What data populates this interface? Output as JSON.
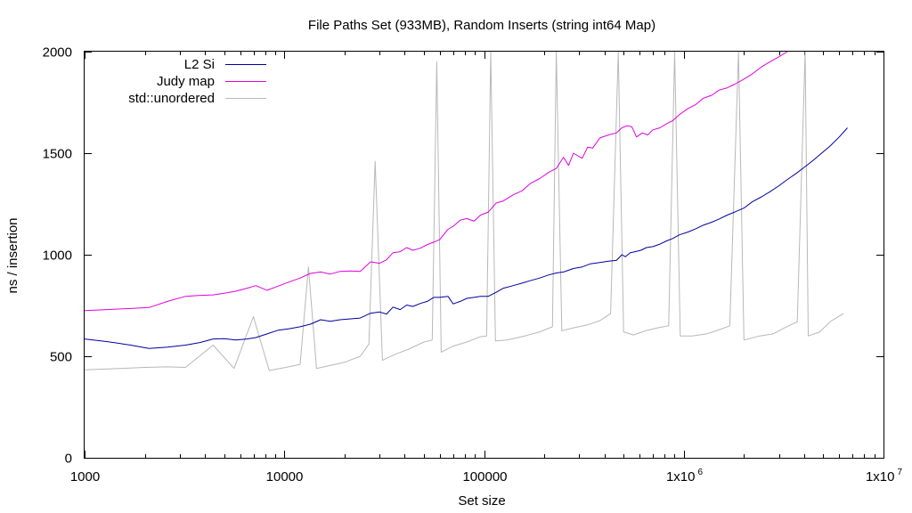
{
  "chart_data": {
    "type": "line",
    "title": "File Paths Set (933MB), Random Inserts (string int64 Map)",
    "xlabel": "Set size",
    "ylabel": "ns / insertion",
    "xscale": "log",
    "xlim": [
      1000,
      10000000
    ],
    "ylim": [
      0,
      2000
    ],
    "grid": false,
    "legend_position": "top-left",
    "x_ticks": [
      {
        "value": 1000,
        "label": "1000"
      },
      {
        "value": 10000,
        "label": "10000"
      },
      {
        "value": 100000,
        "label": "100000"
      },
      {
        "value": 1000000,
        "label": "1x10",
        "exp": "6"
      },
      {
        "value": 10000000,
        "label": "1x10",
        "exp": "7"
      }
    ],
    "y_ticks": [
      {
        "value": 0,
        "label": "0"
      },
      {
        "value": 500,
        "label": "500"
      },
      {
        "value": 1000,
        "label": "1000"
      },
      {
        "value": 1500,
        "label": "1500"
      },
      {
        "value": 2000,
        "label": "2000"
      }
    ],
    "series": [
      {
        "name": "L2 Si",
        "color": "#0000a0",
        "points": [
          [
            1000,
            585
          ],
          [
            1300,
            572
          ],
          [
            1700,
            555
          ],
          [
            2100,
            538
          ],
          [
            2600,
            545
          ],
          [
            3200,
            555
          ],
          [
            3800,
            568
          ],
          [
            4400,
            585
          ],
          [
            5000,
            587
          ],
          [
            5700,
            580
          ],
          [
            6500,
            585
          ],
          [
            7200,
            592
          ],
          [
            8200,
            610
          ],
          [
            9300,
            628
          ],
          [
            10500,
            635
          ],
          [
            12000,
            645
          ],
          [
            13500,
            658
          ],
          [
            15200,
            680
          ],
          [
            17000,
            672
          ],
          [
            19000,
            680
          ],
          [
            21500,
            684
          ],
          [
            24000,
            688
          ],
          [
            27000,
            712
          ],
          [
            30000,
            718
          ],
          [
            32500,
            708
          ],
          [
            35000,
            742
          ],
          [
            38000,
            730
          ],
          [
            41000,
            752
          ],
          [
            44000,
            745
          ],
          [
            48000,
            760
          ],
          [
            52000,
            770
          ],
          [
            56000,
            790
          ],
          [
            60000,
            790
          ],
          [
            66000,
            795
          ],
          [
            70000,
            758
          ],
          [
            76000,
            770
          ],
          [
            82000,
            785
          ],
          [
            89000,
            790
          ],
          [
            96000,
            795
          ],
          [
            105000,
            795
          ],
          [
            115000,
            815
          ],
          [
            125000,
            835
          ],
          [
            140000,
            848
          ],
          [
            155000,
            860
          ],
          [
            170000,
            872
          ],
          [
            190000,
            885
          ],
          [
            210000,
            900
          ],
          [
            230000,
            910
          ],
          [
            250000,
            915
          ],
          [
            280000,
            932
          ],
          [
            310000,
            940
          ],
          [
            340000,
            955
          ],
          [
            380000,
            962
          ],
          [
            420000,
            968
          ],
          [
            460000,
            972
          ],
          [
            490000,
            1000
          ],
          [
            510000,
            990
          ],
          [
            540000,
            1010
          ],
          [
            570000,
            1015
          ],
          [
            610000,
            1022
          ],
          [
            650000,
            1035
          ],
          [
            700000,
            1040
          ],
          [
            760000,
            1052
          ],
          [
            820000,
            1068
          ],
          [
            880000,
            1080
          ],
          [
            950000,
            1098
          ],
          [
            1050000,
            1112
          ],
          [
            1150000,
            1128
          ],
          [
            1250000,
            1145
          ],
          [
            1380000,
            1160
          ],
          [
            1500000,
            1175
          ],
          [
            1650000,
            1195
          ],
          [
            1800000,
            1210
          ],
          [
            2000000,
            1230
          ],
          [
            2200000,
            1260
          ],
          [
            2450000,
            1285
          ],
          [
            2700000,
            1310
          ],
          [
            3000000,
            1340
          ],
          [
            3300000,
            1370
          ],
          [
            3650000,
            1400
          ],
          [
            4000000,
            1430
          ],
          [
            4450000,
            1465
          ],
          [
            4900000,
            1500
          ],
          [
            5400000,
            1535
          ],
          [
            6000000,
            1580
          ],
          [
            6600000,
            1625
          ]
        ]
      },
      {
        "name": "Judy map",
        "color": "#e000e0",
        "points": [
          [
            1000,
            725
          ],
          [
            1300,
            730
          ],
          [
            1700,
            735
          ],
          [
            2100,
            740
          ],
          [
            2600,
            770
          ],
          [
            3200,
            795
          ],
          [
            3800,
            800
          ],
          [
            4400,
            802
          ],
          [
            5000,
            810
          ],
          [
            5700,
            820
          ],
          [
            6500,
            835
          ],
          [
            7200,
            848
          ],
          [
            8200,
            825
          ],
          [
            9300,
            845
          ],
          [
            10500,
            865
          ],
          [
            12000,
            885
          ],
          [
            13500,
            908
          ],
          [
            15200,
            915
          ],
          [
            17000,
            905
          ],
          [
            19000,
            918
          ],
          [
            21500,
            920
          ],
          [
            24000,
            918
          ],
          [
            27000,
            965
          ],
          [
            30000,
            958
          ],
          [
            32500,
            975
          ],
          [
            35000,
            1010
          ],
          [
            38000,
            1015
          ],
          [
            41000,
            1035
          ],
          [
            44000,
            1022
          ],
          [
            48000,
            1032
          ],
          [
            52000,
            1050
          ],
          [
            56000,
            1062
          ],
          [
            60000,
            1075
          ],
          [
            66000,
            1125
          ],
          [
            70000,
            1140
          ],
          [
            76000,
            1170
          ],
          [
            82000,
            1178
          ],
          [
            89000,
            1165
          ],
          [
            96000,
            1195
          ],
          [
            105000,
            1210
          ],
          [
            115000,
            1255
          ],
          [
            125000,
            1265
          ],
          [
            140000,
            1295
          ],
          [
            155000,
            1315
          ],
          [
            170000,
            1350
          ],
          [
            190000,
            1375
          ],
          [
            210000,
            1405
          ],
          [
            230000,
            1425
          ],
          [
            250000,
            1480
          ],
          [
            265000,
            1440
          ],
          [
            280000,
            1500
          ],
          [
            310000,
            1475
          ],
          [
            330000,
            1530
          ],
          [
            350000,
            1525
          ],
          [
            380000,
            1575
          ],
          [
            420000,
            1590
          ],
          [
            460000,
            1600
          ],
          [
            490000,
            1625
          ],
          [
            520000,
            1635
          ],
          [
            550000,
            1630
          ],
          [
            580000,
            1580
          ],
          [
            620000,
            1600
          ],
          [
            660000,
            1590
          ],
          [
            700000,
            1615
          ],
          [
            760000,
            1625
          ],
          [
            820000,
            1645
          ],
          [
            880000,
            1660
          ],
          [
            950000,
            1690
          ],
          [
            1050000,
            1720
          ],
          [
            1150000,
            1740
          ],
          [
            1250000,
            1770
          ],
          [
            1380000,
            1785
          ],
          [
            1500000,
            1810
          ],
          [
            1650000,
            1822
          ],
          [
            1800000,
            1840
          ],
          [
            2000000,
            1865
          ],
          [
            2200000,
            1890
          ],
          [
            2450000,
            1925
          ],
          [
            2700000,
            1950
          ],
          [
            3000000,
            1975
          ],
          [
            3300000,
            2000
          ]
        ]
      },
      {
        "name": "std::unordered",
        "color": "#b8b8b8",
        "points": [
          [
            1000,
            433
          ],
          [
            1500,
            440
          ],
          [
            2000,
            445
          ],
          [
            2600,
            448
          ],
          [
            3200,
            445
          ],
          [
            4400,
            555
          ],
          [
            5600,
            440
          ],
          [
            7000,
            695
          ],
          [
            8400,
            430
          ],
          [
            9500,
            440
          ],
          [
            10500,
            448
          ],
          [
            12000,
            460
          ],
          [
            13200,
            940
          ],
          [
            14500,
            440
          ],
          [
            17000,
            455
          ],
          [
            20000,
            470
          ],
          [
            24000,
            500
          ],
          [
            26500,
            560
          ],
          [
            28500,
            1460
          ],
          [
            31000,
            480
          ],
          [
            36000,
            510
          ],
          [
            42000,
            535
          ],
          [
            50000,
            570
          ],
          [
            55000,
            580
          ],
          [
            58000,
            1950
          ],
          [
            61000,
            520
          ],
          [
            70000,
            550
          ],
          [
            82000,
            570
          ],
          [
            95000,
            595
          ],
          [
            103000,
            600
          ],
          [
            108000,
            2000
          ],
          [
            114000,
            575
          ],
          [
            130000,
            580
          ],
          [
            160000,
            600
          ],
          [
            190000,
            620
          ],
          [
            220000,
            645
          ],
          [
            230000,
            2000
          ],
          [
            245000,
            625
          ],
          [
            280000,
            640
          ],
          [
            330000,
            655
          ],
          [
            380000,
            675
          ],
          [
            430000,
            710
          ],
          [
            470000,
            2000
          ],
          [
            500000,
            620
          ],
          [
            560000,
            605
          ],
          [
            640000,
            625
          ],
          [
            740000,
            640
          ],
          [
            840000,
            650
          ],
          [
            900000,
            2000
          ],
          [
            960000,
            600
          ],
          [
            1100000,
            600
          ],
          [
            1300000,
            610
          ],
          [
            1500000,
            630
          ],
          [
            1700000,
            650
          ],
          [
            1880000,
            2000
          ],
          [
            2000000,
            580
          ],
          [
            2400000,
            600
          ],
          [
            2800000,
            610
          ],
          [
            3200000,
            640
          ],
          [
            3700000,
            670
          ],
          [
            4050000,
            2000
          ],
          [
            4200000,
            600
          ],
          [
            4800000,
            620
          ],
          [
            5400000,
            670
          ],
          [
            6300000,
            710
          ]
        ]
      }
    ]
  }
}
